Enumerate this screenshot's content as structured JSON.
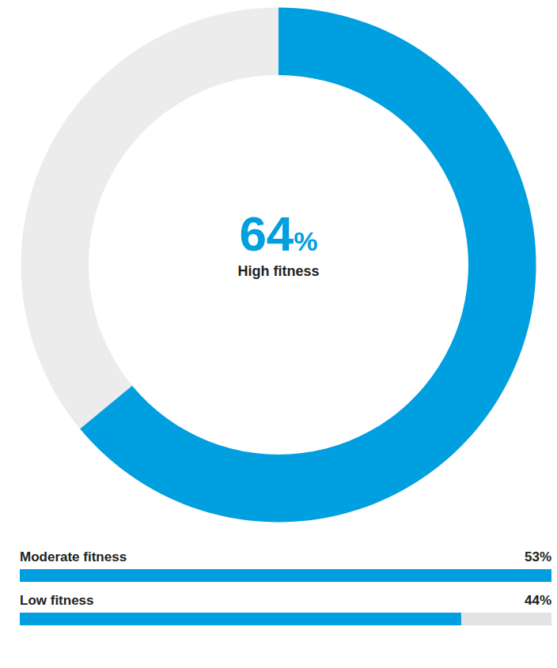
{
  "chart_data": [
    {
      "type": "radial_bar",
      "categories": [
        "High fitness"
      ],
      "values": [
        64
      ],
      "value_labels": [
        "64%"
      ],
      "data_labels": true,
      "ylim": [
        0,
        100
      ],
      "color": "#009fdf",
      "tick_labels": false
    },
    {
      "type": "bar",
      "orientation": "horizontal",
      "categories": [
        "Moderate fitness",
        "Low fitness"
      ],
      "values": [
        53,
        44
      ],
      "value_labels": [
        "53%",
        "44%"
      ],
      "data_labels": true,
      "xlim": [
        0,
        53
      ],
      "color": "#009fdf",
      "tick_labels": false
    }
  ]
}
